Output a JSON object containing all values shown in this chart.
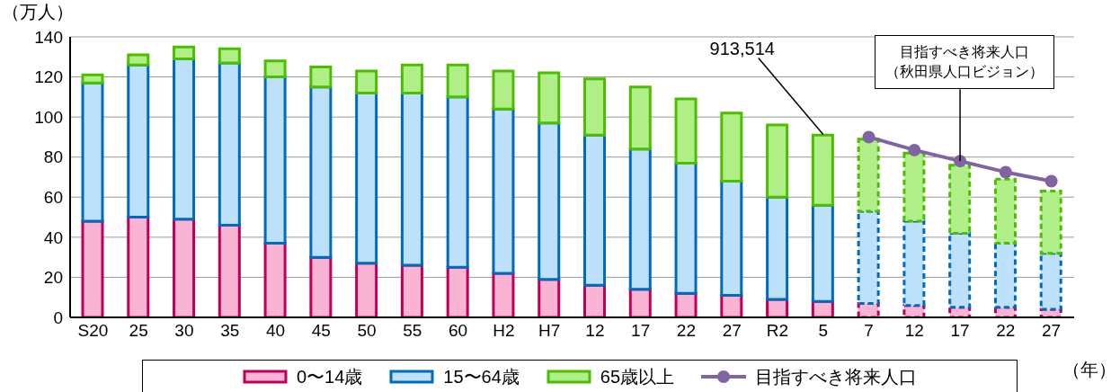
{
  "chart_data": {
    "type": "bar",
    "ylabel": "（万人）",
    "xlabel": "（年）",
    "categories": [
      "S20",
      "25",
      "30",
      "35",
      "40",
      "45",
      "50",
      "55",
      "60",
      "H2",
      "H7",
      "12",
      "17",
      "22",
      "27",
      "R2",
      "5",
      "7",
      "12",
      "17",
      "22",
      "27"
    ],
    "series": [
      {
        "name": "0〜14歳",
        "color": "#f9b4d4",
        "values": [
          48,
          50,
          49,
          46,
          37,
          30,
          27,
          26,
          25,
          22,
          19,
          16,
          14,
          12,
          11,
          9,
          8,
          null,
          null,
          null,
          null,
          null
        ]
      },
      {
        "color": "#f9b4d4",
        "line_style": "dashed",
        "values": [
          null,
          null,
          null,
          null,
          null,
          null,
          null,
          null,
          null,
          null,
          null,
          null,
          null,
          null,
          null,
          null,
          null,
          7,
          6,
          5,
          5,
          4
        ]
      },
      {
        "name": "15〜64歳",
        "color": "#bde0fb",
        "values": [
          69,
          76,
          80,
          81,
          83,
          85,
          85,
          86,
          85,
          82,
          78,
          75,
          70,
          65,
          57,
          51,
          48,
          null,
          null,
          null,
          null,
          null
        ]
      },
      {
        "color": "#bde0fb",
        "line_style": "dashed",
        "values": [
          null,
          null,
          null,
          null,
          null,
          null,
          null,
          null,
          null,
          null,
          null,
          null,
          null,
          null,
          null,
          null,
          null,
          46,
          42,
          37,
          32,
          28
        ]
      },
      {
        "name": "65歳以上",
        "color": "#b0ee88",
        "values": [
          4,
          5,
          6,
          7,
          8,
          10,
          11,
          14,
          16,
          19,
          25,
          28,
          31,
          32,
          34,
          36,
          35,
          null,
          null,
          null,
          null,
          null
        ]
      },
      {
        "color": "#b0ee88",
        "line_style": "dashed",
        "values": [
          null,
          null,
          null,
          null,
          null,
          null,
          null,
          null,
          null,
          null,
          null,
          null,
          null,
          null,
          null,
          null,
          null,
          36,
          34,
          34,
          32,
          31
        ]
      },
      {
        "name": "目指すべき将来人口",
        "type": "line",
        "color": "#8064a2",
        "marker": "circle",
        "values": [
          null,
          null,
          null,
          null,
          null,
          null,
          null,
          null,
          null,
          null,
          null,
          null,
          null,
          null,
          null,
          null,
          null,
          90,
          83.5,
          78,
          72.5,
          68
        ]
      }
    ],
    "stacked": true,
    "ylim": [
      0,
      140
    ],
    "yticks": [
      0,
      20,
      40,
      60,
      80,
      100,
      120,
      140
    ],
    "grid": "y",
    "legend": "bottom",
    "annotations": [
      {
        "text": "913,514",
        "x": "5",
        "y": 91.35
      },
      {
        "text": "目指すべき将来人口（秋田県人口ビジョン）",
        "y": 78
      }
    ]
  }
}
